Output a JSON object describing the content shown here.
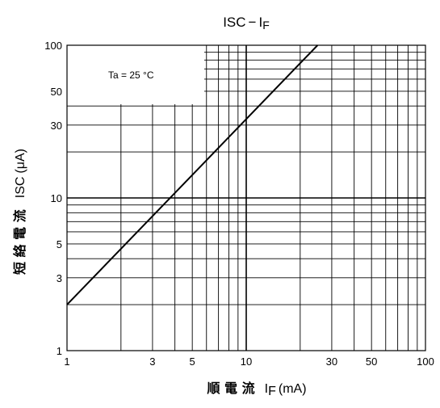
{
  "chart_data": {
    "type": "line",
    "title": {
      "main": "ISC",
      "separator": "−",
      "symbol": "I",
      "sub": "F"
    },
    "annotation": "Ta = 25 °C",
    "xlabel": {
      "cjk": "順 電 流",
      "symbol": "I",
      "sub": "F",
      "unit": "(mA)"
    },
    "ylabel": {
      "cjk": "短 絡 電 流",
      "symbol": "ISC",
      "unit": "(μA)"
    },
    "x_scale": "log",
    "y_scale": "log",
    "xlim": [
      1,
      100
    ],
    "ylim": [
      1,
      100
    ],
    "x_tick_labels": [
      "1",
      "3",
      "5",
      "10",
      "30",
      "50",
      "100"
    ],
    "y_tick_labels": [
      "1",
      "3",
      "5",
      "10",
      "30",
      "50",
      "100"
    ],
    "grid": true,
    "series": [
      {
        "x": [
          1,
          25
        ],
        "y": [
          2,
          100
        ]
      }
    ]
  }
}
